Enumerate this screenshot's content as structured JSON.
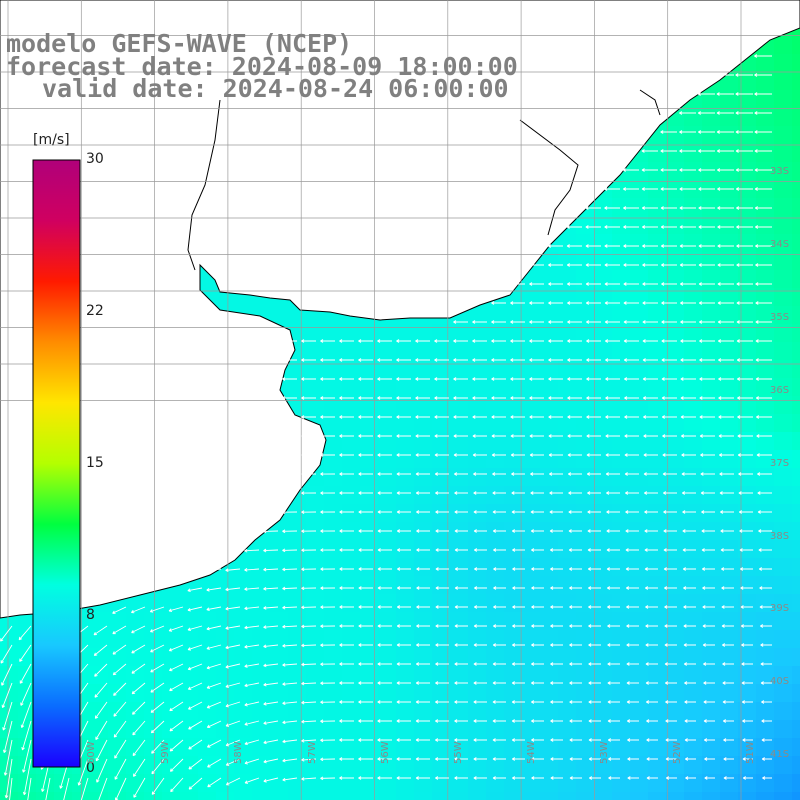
{
  "header": {
    "line1": "modelo GEFS-WAVE (NCEP)",
    "line2": "forecast date: 2024-08-09 18:00:00",
    "line3": "valid date: 2024-08-24 06:00:00"
  },
  "colorbar": {
    "units": "[m/s]",
    "min": 0,
    "max": 30,
    "tick_labels": [
      "30",
      "22",
      "15",
      "8",
      "0"
    ],
    "tick_values": [
      30,
      22,
      15,
      8,
      0
    ],
    "colors": [
      "#1a00ff",
      "#0a6cff",
      "#18c8ff",
      "#00ffe0",
      "#00ff40",
      "#b4ff00",
      "#ffe600",
      "#ff8c00",
      "#ff1a00",
      "#d00060",
      "#b0007a"
    ]
  },
  "map": {
    "lat_labels": [
      "33S",
      "34S",
      "35S",
      "36S",
      "37S",
      "38S",
      "39S",
      "40S",
      "41S"
    ],
    "lon_labels": [
      "60W",
      "59W",
      "58W",
      "57W",
      "56W",
      "55W",
      "54W",
      "53W",
      "52W",
      "51W"
    ],
    "wind_direction": "from east, turning to north-east in the south-west",
    "speed_range_ms": [
      4,
      12
    ]
  }
}
